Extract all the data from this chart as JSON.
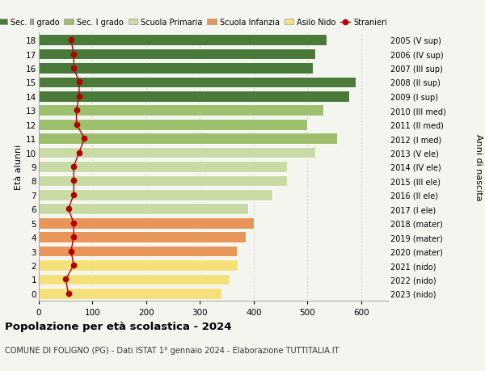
{
  "ages": [
    0,
    1,
    2,
    3,
    4,
    5,
    6,
    7,
    8,
    9,
    10,
    11,
    12,
    13,
    14,
    15,
    16,
    17,
    18
  ],
  "right_labels": [
    "2023 (nido)",
    "2022 (nido)",
    "2021 (nido)",
    "2020 (mater)",
    "2019 (mater)",
    "2018 (mater)",
    "2017 (I ele)",
    "2016 (II ele)",
    "2015 (III ele)",
    "2014 (IV ele)",
    "2013 (V ele)",
    "2012 (I med)",
    "2011 (II med)",
    "2010 (III med)",
    "2009 (I sup)",
    "2008 (II sup)",
    "2007 (III sup)",
    "2006 (IV sup)",
    "2005 (V sup)"
  ],
  "bar_values": [
    340,
    355,
    370,
    368,
    385,
    400,
    390,
    435,
    462,
    462,
    515,
    555,
    500,
    530,
    578,
    590,
    510,
    515,
    535
  ],
  "bar_colors": [
    "#f5e07a",
    "#f5e07a",
    "#f5e07a",
    "#e8955a",
    "#e8955a",
    "#e8955a",
    "#c8dba5",
    "#c8dba5",
    "#c8dba5",
    "#c8dba5",
    "#c8dba5",
    "#9dbf6e",
    "#9dbf6e",
    "#9dbf6e",
    "#4a7a3a",
    "#4a7a3a",
    "#4a7a3a",
    "#4a7a3a",
    "#4a7a3a"
  ],
  "stranieri_values": [
    55,
    50,
    65,
    60,
    65,
    65,
    55,
    65,
    65,
    65,
    75,
    85,
    70,
    70,
    75,
    75,
    65,
    65,
    60
  ],
  "legend_labels": [
    "Sec. II grado",
    "Sec. I grado",
    "Scuola Primaria",
    "Scuola Infanzia",
    "Asilo Nido",
    "Stranieri"
  ],
  "legend_colors": [
    "#4a7a3a",
    "#9dbf6e",
    "#c8dba5",
    "#e8955a",
    "#f5e07a",
    "#b00000"
  ],
  "title": "Popolazione per età scolastica - 2024",
  "subtitle": "COMUNE DI FOLIGNO (PG) - Dati ISTAT 1° gennaio 2024 - Elaborazione TUTTITALIA.IT",
  "ylabel_left": "Età alunni",
  "ylabel_right": "Anni di nascita",
  "xlim": [
    0,
    650
  ],
  "background_color": "#f5f5f0",
  "bar_edgecolor": "#ffffff",
  "grid_color": "#cccccc"
}
